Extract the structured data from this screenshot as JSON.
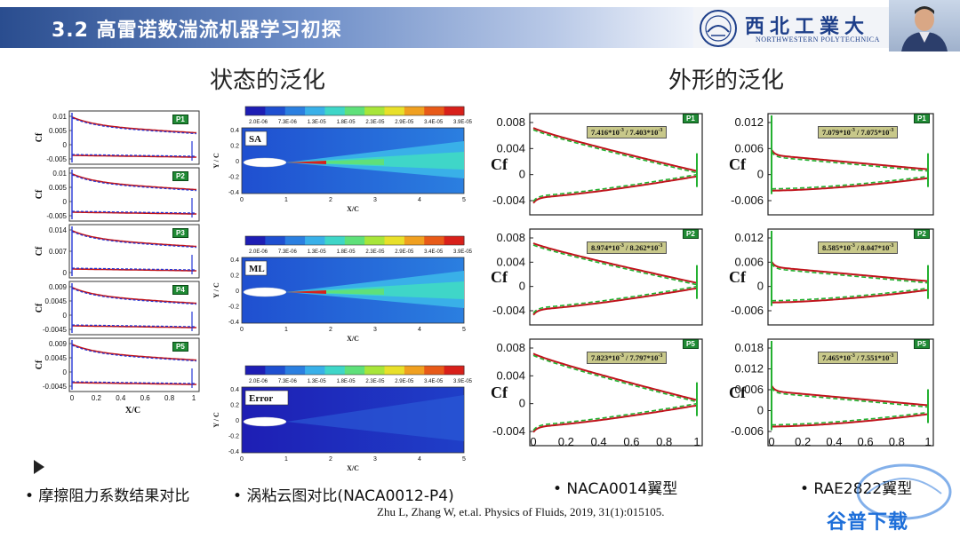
{
  "header": {
    "title": "3.2 高雷诺数湍流机器学习初探",
    "logo_cn": "西北工業大",
    "logo_en": "NORTHWESTERN POLYTECHNICA"
  },
  "sections": {
    "left_title": "状态的泛化",
    "right_title": "外形的泛化"
  },
  "captions": {
    "cf_compare": "• 摩擦阻力系数结果对比",
    "contour_compare": "• 涡粘云图对比(NACA0012-P4)",
    "naca0014": "• NACA0014翼型",
    "rae2822": "• RAE2822翼型"
  },
  "citation": "Zhu L, Zhang W, et.al. Physics of Fluids, 2019, 31(1):015105.",
  "watermark": "谷普下载",
  "colors": {
    "header_band": "#2a4d8f",
    "tag_green": "#1f8a34",
    "line_red": "#c0141c",
    "line_blue": "#2436d6",
    "line_green_dashed": "#23b030",
    "ratio_box": "#c8c88a"
  },
  "small_cf_plots": [
    {
      "tag": "P1",
      "yticks": [
        "0.01",
        "0.005",
        "0",
        "-0.005"
      ],
      "ylabel": "Cf"
    },
    {
      "tag": "P2",
      "yticks": [
        "0.01",
        "0.005",
        "0",
        "-0.005"
      ],
      "ylabel": "Cf"
    },
    {
      "tag": "P3",
      "yticks": [
        "0.014",
        "0.007",
        "0"
      ],
      "ylabel": "Cf"
    },
    {
      "tag": "P4",
      "yticks": [
        "0.009",
        "0.0045",
        "0",
        "-0.0045"
      ],
      "ylabel": "Cf"
    },
    {
      "tag": "P5",
      "yticks": [
        "0.009",
        "0.0045",
        "0",
        "-0.0045"
      ],
      "ylabel": "Cf"
    }
  ],
  "small_cf_xaxis": {
    "ticks": [
      "0",
      "0.2",
      "0.4",
      "0.6",
      "0.8",
      "1"
    ],
    "label": "X/C"
  },
  "contours": {
    "colorbar_ticks": [
      "2.0E-06",
      "7.3E-06",
      "1.3E-05",
      "1.8E-05",
      "2.3E-05",
      "2.9E-05",
      "3.4E-05",
      "3.9E-05"
    ],
    "colorbar_colors": [
      "#1e1eb4",
      "#1f4fd0",
      "#2b7fe0",
      "#39b0e8",
      "#3fd6c8",
      "#5fe07a",
      "#a8e53a",
      "#e8e02a",
      "#f0a020",
      "#e85a18",
      "#d8201a"
    ],
    "yticks": [
      "0.4",
      "0.2",
      "0",
      "-0.2",
      "-0.4"
    ],
    "xticks": [
      "0",
      "1",
      "2",
      "3",
      "4",
      "5"
    ],
    "xlabel": "X/C",
    "ylabel": "Y / C",
    "panels": [
      {
        "label": "SA"
      },
      {
        "label": "ML"
      },
      {
        "label": "Error"
      }
    ]
  },
  "naca_plots": {
    "xticks": [
      "0",
      "0.2",
      "0.4",
      "0.6",
      "0.8",
      "1"
    ],
    "ylabel": "Cf",
    "panels": [
      {
        "tag": "P1",
        "ratio_a": "7.416*10",
        "ratio_b": "7.403*10",
        "exp": "-3",
        "yticks": [
          "0.008",
          "0.004",
          "0",
          "-0.004"
        ]
      },
      {
        "tag": "P2",
        "ratio_a": "8.974*10",
        "ratio_b": "8.262*10",
        "exp": "-3",
        "yticks": [
          "0.008",
          "0.004",
          "0",
          "-0.004"
        ]
      },
      {
        "tag": "P5",
        "ratio_a": "7.823*10",
        "ratio_b": "7.797*10",
        "exp": "-3",
        "yticks": [
          "0.008",
          "0.004",
          "0",
          "-0.004"
        ]
      }
    ]
  },
  "rae_plots": {
    "xticks": [
      "0",
      "0.2",
      "0.4",
      "0.6",
      "0.8",
      "1"
    ],
    "ylabel": "Cf",
    "panels": [
      {
        "tag": "P1",
        "ratio_a": "7.079*10",
        "ratio_b": "7.075*10",
        "exp": "-3",
        "yticks": [
          "0.012",
          "0.006",
          "0",
          "-0.006"
        ]
      },
      {
        "tag": "P2",
        "ratio_a": "8.585*10",
        "ratio_b": "8.047*10",
        "exp": "-3",
        "yticks": [
          "0.012",
          "0.006",
          "0",
          "-0.006"
        ]
      },
      {
        "tag": "P5",
        "ratio_a": "7.465*10",
        "ratio_b": "7.551*10",
        "exp": "-3",
        "yticks": [
          "0.018",
          "0.012",
          "0.006",
          "0",
          "-0.006"
        ]
      }
    ]
  }
}
